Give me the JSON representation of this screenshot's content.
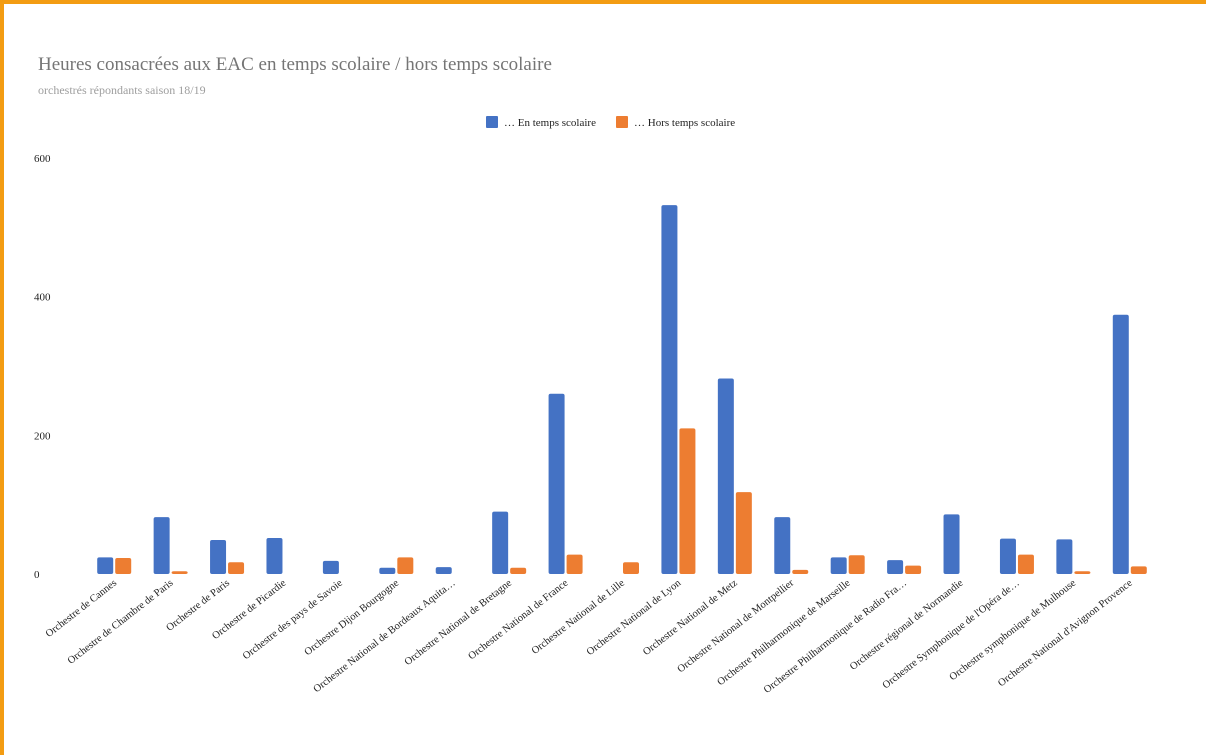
{
  "colors": {
    "border": "#f39c12",
    "series_1": "#4472c4",
    "series_2": "#ed7d31"
  },
  "chart_data": {
    "type": "bar",
    "title": "Heures consacrées aux EAC en temps scolaire / hors temps scolaire",
    "subtitle": "orchestrés répondants saison 18/19",
    "xlabel": "",
    "ylabel": "",
    "ylim": [
      0,
      600
    ],
    "yticks": [
      0,
      200,
      400,
      600
    ],
    "grid": false,
    "legend_position": "top-center",
    "categories": [
      "Orchestre de Cannes",
      "Orchestre de Chambre de Paris",
      "Orchestre de Paris",
      "Orchestre de Picardie",
      "Orchestre des pays de Savoie",
      "Orchestre Dijon Bourgogne",
      "Orchestre National de Bordeaux Aquita…",
      "Orchestre National de Bretagne",
      "Orchestre National de France",
      "Orchestre National de Lille",
      "Orchestre National de Lyon",
      "Orchestre National de Metz",
      "Orchestre National de Montpellier",
      "Orchestre Philharmonique de Marseille",
      "Orchestre Philharmonique de Radio Fra…",
      "Orchestre régional de Normandie",
      "Orchestre Symphonique de l'Opéra de…",
      "Orchestre symphonique de Mulhouse",
      "Orchestre National d'Avignon Provence"
    ],
    "series": [
      {
        "name": "… En temps scolaire",
        "color": "#4472c4",
        "values": [
          24,
          82,
          49,
          52,
          19,
          9,
          10,
          90,
          260,
          0,
          532,
          282,
          82,
          24,
          20,
          86,
          51,
          50,
          374
        ]
      },
      {
        "name": "… Hors temps scolaire",
        "color": "#ed7d31",
        "values": [
          23,
          4,
          17,
          0,
          0,
          24,
          0,
          9,
          28,
          17,
          210,
          118,
          6,
          27,
          12,
          0,
          28,
          4,
          11
        ]
      }
    ]
  }
}
